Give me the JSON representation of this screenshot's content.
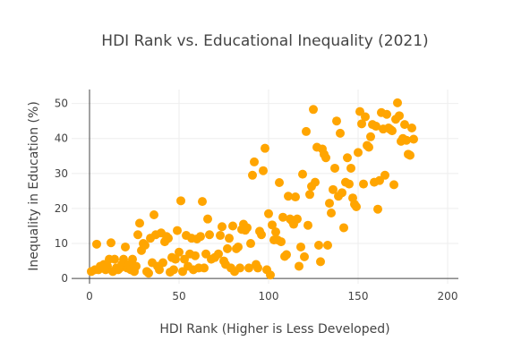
{
  "chart_data": {
    "type": "scatter",
    "title": "HDI Rank vs. Educational Inequality (2021)",
    "xlabel": "HDI Rank (Higher is Less Developed)",
    "ylabel": "Inequality in Education (%)",
    "xlim": [
      -10,
      206
    ],
    "ylim": [
      -1.5,
      54
    ],
    "xticks": [
      0,
      50,
      100,
      150,
      200
    ],
    "yticks": [
      0,
      10,
      20,
      30,
      40,
      50
    ],
    "grid": true,
    "marker_color": "#FFA500",
    "points": [
      [
        1,
        2
      ],
      [
        3,
        2.5
      ],
      [
        4,
        9.8
      ],
      [
        5,
        2.5
      ],
      [
        6,
        3.5
      ],
      [
        7,
        3
      ],
      [
        8,
        4
      ],
      [
        9,
        2.5
      ],
      [
        10,
        3.5
      ],
      [
        11,
        5.5
      ],
      [
        12,
        10.2
      ],
      [
        13,
        2
      ],
      [
        14,
        5.5
      ],
      [
        15,
        3
      ],
      [
        16,
        2.5
      ],
      [
        17,
        3
      ],
      [
        18,
        4
      ],
      [
        19,
        5.5
      ],
      [
        20,
        9
      ],
      [
        21,
        3
      ],
      [
        22,
        4
      ],
      [
        23,
        2.5
      ],
      [
        24,
        5.5
      ],
      [
        25,
        2
      ],
      [
        26,
        3.5
      ],
      [
        27,
        12.5
      ],
      [
        28,
        15.8
      ],
      [
        29,
        8
      ],
      [
        30,
        10
      ],
      [
        31,
        9.5
      ],
      [
        32,
        2
      ],
      [
        33,
        1.5
      ],
      [
        34,
        11.5
      ],
      [
        35,
        4.5
      ],
      [
        36,
        18.2
      ],
      [
        37,
        12.5
      ],
      [
        38,
        3.5
      ],
      [
        39,
        2.5
      ],
      [
        40,
        13
      ],
      [
        41,
        4.5
      ],
      [
        42,
        10.5
      ],
      [
        43,
        12
      ],
      [
        44,
        11.5
      ],
      [
        45,
        1.8
      ],
      [
        46,
        6
      ],
      [
        47,
        2.5
      ],
      [
        48,
        5.5
      ],
      [
        49,
        13.7
      ],
      [
        50,
        7.5
      ],
      [
        51,
        22.2
      ],
      [
        52,
        2
      ],
      [
        53,
        5.5
      ],
      [
        54,
        12.3
      ],
      [
        55,
        3.5
      ],
      [
        56,
        7
      ],
      [
        57,
        11.5
      ],
      [
        58,
        2.5
      ],
      [
        59,
        6.5
      ],
      [
        60,
        11.3
      ],
      [
        61,
        3
      ],
      [
        62,
        12
      ],
      [
        63,
        22
      ],
      [
        64,
        3
      ],
      [
        65,
        7
      ],
      [
        66,
        17
      ],
      [
        67,
        12.5
      ],
      [
        68,
        5.5
      ],
      [
        70,
        6
      ],
      [
        72,
        7
      ],
      [
        73,
        12.3
      ],
      [
        74,
        14.8
      ],
      [
        75,
        5
      ],
      [
        76,
        4
      ],
      [
        77,
        8.5
      ],
      [
        78,
        11.5
      ],
      [
        79,
        3
      ],
      [
        80,
        15
      ],
      [
        81,
        2
      ],
      [
        82,
        8.5
      ],
      [
        83,
        9
      ],
      [
        84,
        3
      ],
      [
        85,
        14
      ],
      [
        86,
        15.5
      ],
      [
        87,
        13.8
      ],
      [
        88,
        14.5
      ],
      [
        89,
        3
      ],
      [
        90,
        10
      ],
      [
        91,
        29.5
      ],
      [
        92,
        33.3
      ],
      [
        93,
        4
      ],
      [
        94,
        3
      ],
      [
        95,
        13.5
      ],
      [
        96,
        12.5
      ],
      [
        97,
        30.8
      ],
      [
        98,
        37.2
      ],
      [
        99,
        2.5
      ],
      [
        100,
        18.5
      ],
      [
        101,
        1
      ],
      [
        102,
        15.3
      ],
      [
        103,
        11
      ],
      [
        104,
        13.3
      ],
      [
        105,
        11
      ],
      [
        106,
        27.4
      ],
      [
        107,
        10.5
      ],
      [
        108,
        17.5
      ],
      [
        109,
        6.3
      ],
      [
        110,
        6.8
      ],
      [
        111,
        23.5
      ],
      [
        112,
        17
      ],
      [
        113,
        16.5
      ],
      [
        114,
        15.5
      ],
      [
        115,
        23.3
      ],
      [
        116,
        17
      ],
      [
        117,
        3.5
      ],
      [
        118,
        9
      ],
      [
        119,
        29.8
      ],
      [
        120,
        6.2
      ],
      [
        121,
        42
      ],
      [
        122,
        15.2
      ],
      [
        123,
        24
      ],
      [
        124,
        26.3
      ],
      [
        125,
        48.3
      ],
      [
        126,
        27.5
      ],
      [
        127,
        37.5
      ],
      [
        128,
        9.5
      ],
      [
        129,
        4.8
      ],
      [
        130,
        37
      ],
      [
        131,
        35.5
      ],
      [
        132,
        34.5
      ],
      [
        133,
        9.5
      ],
      [
        134,
        21.5
      ],
      [
        135,
        18.7
      ],
      [
        136,
        25.4
      ],
      [
        137,
        31.5
      ],
      [
        138,
        45
      ],
      [
        139,
        23.5
      ],
      [
        140,
        41.5
      ],
      [
        141,
        24.5
      ],
      [
        142,
        14.5
      ],
      [
        143,
        27.5
      ],
      [
        144,
        34.5
      ],
      [
        145,
        27
      ],
      [
        146,
        31.5
      ],
      [
        147,
        23
      ],
      [
        148,
        21.2
      ],
      [
        149,
        20.5
      ],
      [
        150,
        36
      ],
      [
        151,
        47.7
      ],
      [
        152,
        44.2
      ],
      [
        153,
        27
      ],
      [
        154,
        46.2
      ],
      [
        155,
        38
      ],
      [
        156,
        37.5
      ],
      [
        157,
        40.5
      ],
      [
        158,
        44
      ],
      [
        159,
        27.5
      ],
      [
        160,
        43.5
      ],
      [
        161,
        19.8
      ],
      [
        162,
        28
      ],
      [
        163,
        47.4
      ],
      [
        164,
        42.7
      ],
      [
        165,
        29.5
      ],
      [
        166,
        46.9
      ],
      [
        167,
        43
      ],
      [
        168,
        42.6
      ],
      [
        169,
        42.2
      ],
      [
        170,
        26.8
      ],
      [
        171,
        45.5
      ],
      [
        172,
        50.2
      ],
      [
        173,
        46.5
      ],
      [
        174,
        39.2
      ],
      [
        175,
        40
      ],
      [
        176,
        44
      ],
      [
        177,
        39.5
      ],
      [
        178,
        35.5
      ],
      [
        179,
        35.2
      ],
      [
        180,
        43
      ],
      [
        181,
        39.8
      ]
    ]
  }
}
